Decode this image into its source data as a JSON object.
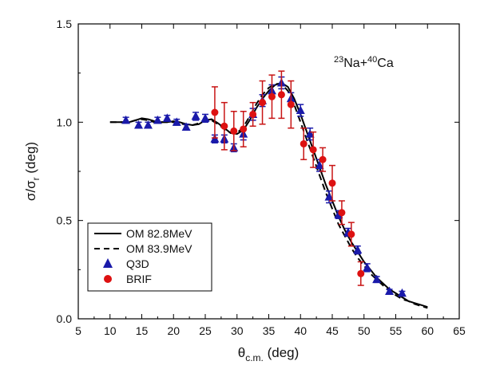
{
  "chart_data": {
    "type": "scatter",
    "title": "",
    "annotation": {
      "prefix1": "23",
      "word1": "Na+",
      "prefix2": "40",
      "word2": "Ca"
    },
    "xlabel": {
      "symbol": "θ",
      "sub": "c.m.",
      "unit": " (deg)"
    },
    "ylabel": {
      "sym1": "σ/σ",
      "sub": "r",
      "unit": " (deg)"
    },
    "xlim": [
      5,
      65
    ],
    "ylim": [
      0.0,
      1.5
    ],
    "xticks": [
      5,
      10,
      15,
      20,
      25,
      30,
      35,
      40,
      45,
      50,
      55,
      60,
      65
    ],
    "yticks": [
      0.0,
      0.5,
      1.0,
      1.5
    ],
    "xtick_labels": [
      "5",
      "10",
      "15",
      "20",
      "25",
      "30",
      "35",
      "40",
      "45",
      "50",
      "55",
      "60",
      "65"
    ],
    "ytick_labels": [
      "0.0",
      "0.5",
      "1.0",
      "1.5"
    ],
    "legend_position": "bottom-left",
    "series": [
      {
        "name": "OM 82.8MeV",
        "style": "solid",
        "color": "#000000",
        "x": [
          10,
          11,
          12,
          13,
          14,
          15,
          16,
          17,
          18,
          19,
          20,
          21,
          22,
          23,
          24,
          25,
          26,
          27,
          28,
          29,
          30,
          31,
          32,
          33,
          34,
          35,
          36,
          37,
          38,
          39,
          40,
          41,
          42,
          43,
          44,
          45,
          46,
          47,
          48,
          49,
          50,
          51,
          52,
          53,
          54,
          55,
          56,
          57,
          58,
          59,
          60
        ],
        "y": [
          1.0,
          1.0,
          1.0,
          1.0,
          1.01,
          1.02,
          1.015,
          1.005,
          1.0,
          1.0,
          1.005,
          1.0,
          0.99,
          0.985,
          0.99,
          1.01,
          1.015,
          0.995,
          0.97,
          0.945,
          0.94,
          0.96,
          1.01,
          1.07,
          1.12,
          1.16,
          1.19,
          1.2,
          1.18,
          1.12,
          1.04,
          0.95,
          0.86,
          0.77,
          0.68,
          0.6,
          0.52,
          0.45,
          0.39,
          0.34,
          0.29,
          0.25,
          0.21,
          0.18,
          0.15,
          0.13,
          0.11,
          0.09,
          0.08,
          0.07,
          0.06
        ]
      },
      {
        "name": "OM 83.9MeV",
        "style": "dashed",
        "color": "#000000",
        "x": [
          10,
          11,
          12,
          13,
          14,
          15,
          16,
          17,
          18,
          19,
          20,
          21,
          22,
          23,
          24,
          25,
          26,
          27,
          28,
          29,
          30,
          31,
          32,
          33,
          34,
          35,
          36,
          37,
          38,
          39,
          40,
          41,
          42,
          43,
          44,
          45,
          46,
          47,
          48,
          49,
          50,
          51,
          52,
          53,
          54,
          55,
          56,
          57,
          58,
          59,
          60
        ],
        "y": [
          1.0,
          1.0,
          1.0,
          1.0,
          1.01,
          1.015,
          1.01,
          1.0,
          1.0,
          1.0,
          1.0,
          0.995,
          0.985,
          0.985,
          0.995,
          1.01,
          1.01,
          0.99,
          0.965,
          0.945,
          0.945,
          0.975,
          1.03,
          1.09,
          1.14,
          1.175,
          1.195,
          1.195,
          1.16,
          1.09,
          1.0,
          0.91,
          0.82,
          0.73,
          0.64,
          0.56,
          0.48,
          0.42,
          0.36,
          0.31,
          0.27,
          0.23,
          0.2,
          0.17,
          0.14,
          0.12,
          0.1,
          0.09,
          0.075,
          0.065,
          0.055
        ]
      },
      {
        "name": "Q3D",
        "style": "triangle",
        "color": "#1a1aaa",
        "x": [
          12.5,
          14.5,
          16.0,
          17.5,
          19.0,
          20.5,
          22.0,
          23.5,
          25.0,
          26.5,
          28.0,
          29.5,
          31.0,
          32.5,
          34.0,
          35.5,
          37.0,
          38.5,
          40.0,
          41.5,
          43.0,
          44.5,
          46.0,
          47.5,
          49.0,
          50.5,
          52.0,
          54.0,
          56.0
        ],
        "y": [
          1.01,
          0.985,
          0.985,
          1.01,
          1.02,
          1.0,
          0.975,
          1.03,
          1.02,
          0.915,
          0.915,
          0.87,
          0.94,
          1.04,
          1.11,
          1.16,
          1.2,
          1.12,
          1.06,
          0.94,
          0.78,
          0.62,
          0.53,
          0.44,
          0.35,
          0.26,
          0.2,
          0.14,
          0.13
        ],
        "err": [
          0.015,
          0.015,
          0.015,
          0.015,
          0.015,
          0.015,
          0.015,
          0.02,
          0.02,
          0.02,
          0.02,
          0.02,
          0.03,
          0.03,
          0.03,
          0.03,
          0.03,
          0.03,
          0.03,
          0.03,
          0.03,
          0.03,
          0.02,
          0.02,
          0.02,
          0.02,
          0.015,
          0.01,
          0.01
        ]
      },
      {
        "name": "BRIF",
        "style": "circle",
        "color": "#dd1111",
        "x": [
          26.5,
          28.0,
          29.5,
          31.0,
          32.5,
          34.0,
          35.5,
          37.0,
          38.5,
          40.5,
          42.0,
          43.5,
          45.0,
          46.5,
          48.0,
          49.5
        ],
        "y": [
          1.05,
          0.98,
          0.955,
          0.965,
          1.04,
          1.1,
          1.13,
          1.14,
          1.09,
          0.89,
          0.86,
          0.81,
          0.69,
          0.54,
          0.43,
          0.23
        ],
        "err": [
          0.13,
          0.12,
          0.1,
          0.09,
          0.06,
          0.11,
          0.11,
          0.12,
          0.12,
          0.08,
          0.09,
          0.06,
          0.09,
          0.06,
          0.06,
          0.06
        ]
      }
    ]
  }
}
